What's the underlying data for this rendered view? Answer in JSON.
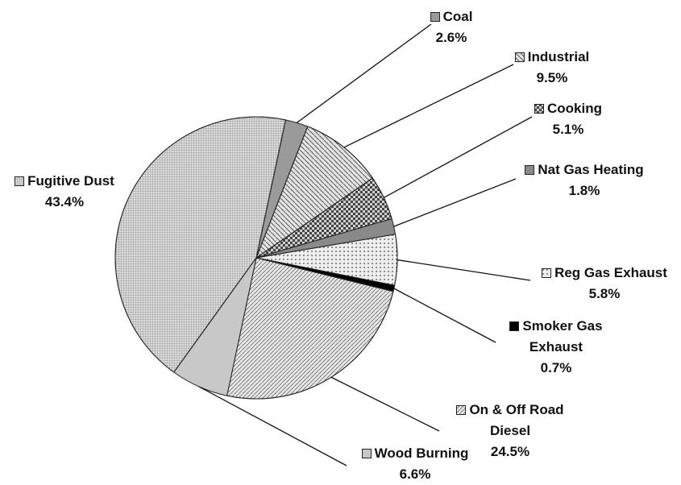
{
  "chart_data": {
    "type": "pie",
    "categories": [
      "Coal",
      "Industrial",
      "Cooking",
      "Nat Gas Heating",
      "Reg Gas Exhaust",
      "Smoker Gas Exhaust",
      "On & Off Road Diesel",
      "Wood Burning",
      "Fugitive Dust"
    ],
    "values": [
      2.6,
      9.5,
      5.1,
      1.8,
      5.8,
      0.7,
      24.5,
      6.6,
      43.4
    ],
    "value_labels": [
      "2.6%",
      "9.5%",
      "5.1%",
      "1.8%",
      "5.8%",
      "0.7%",
      "24.5%",
      "6.6%",
      "43.4%"
    ],
    "colors": [
      "#9a9a9a",
      "#e4e4e4",
      "#d0d0d0",
      "#8a8a8a",
      "#eeeeee",
      "#000000",
      "#e8e8e8",
      "#c8c8c8",
      "#dcdcdc"
    ]
  }
}
